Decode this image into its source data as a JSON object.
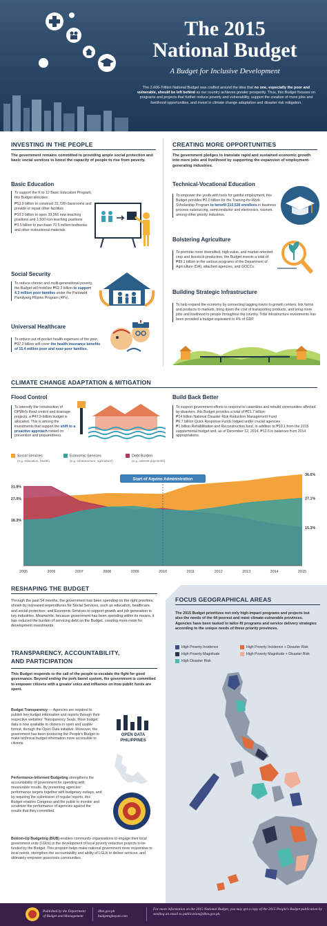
{
  "header": {
    "title_line1": "The 2015",
    "title_line2": "National Budget",
    "subtitle": "A Budget for Inclusive Development",
    "intro_a": "The 2.606-Trillion National Budget was crafted around the idea that ",
    "intro_b": "no one, especially the poor and vulnerable, should be left behind",
    "intro_c": " as our country achieves greater prosperity. Thus, this Budget focuses on programs and projects that further reduce poverty and vulnerability, support the creation of more jobs and livelihood opportunities, and invest in climate change adaptation and disaster risk mitigation."
  },
  "investing": {
    "heading": "INVESTING IN THE PEOPLE",
    "lead": "The government remains committed to providing ample social protection and basic social services to boost the capacity of people to rise from poverty.",
    "basic_ed": {
      "title": "Basic Education",
      "intro": "To support the K to 12 Basic Education Program, this Budget allocates:",
      "b1": "₱53.9 billion to construct 31,728 classrooms and provide or repair other facilities",
      "b2": "₱10.0 billion to open 39,066 new teaching positions and 1,500 non-teaching positions",
      "b3": "₱3.5 billion to purchase 70.5 million textbooks and other instructional materials"
    },
    "social_sec": {
      "title": "Social Security",
      "text_a": "To reduce chronic and multi-generational poverty, the Budget will mobilize ₱62.3 billion ",
      "text_b": "to support 4.3 million poor families",
      "text_c": " under the Pantawid Pamilyang Pilipino Program (4Ps)."
    },
    "healthcare": {
      "title": "Universal Healthcare",
      "text_a": "To reduce out-of-pocket health expenses of the poor, ₱37.2 billion will cover ",
      "text_b": "the health insurance benefits of 15.4 million poor and near-poor families."
    }
  },
  "opportunities": {
    "heading": "CREATING MORE OPPORTUNITIES",
    "lead": "The government pledges to translate rapid and sustained economic growth into more jobs and livelihood by supporting the expansion of employment-generating industries.",
    "tech_voc": {
      "title": "Technical-Vocational Education",
      "text_a": "To empower the youth with tools for gainful employment, this Budget provides ₱2.0 billion for the Training-for-Work Scholarship Program ",
      "text_b": "to benefit 210,526 enrollees",
      "text_c": " in business process outsourcing, semiconductor and electronics, tourism, among other priority industries."
    },
    "agri": {
      "title": "Bolstering Agriculture",
      "text": "To promote more diversified, high-value, and market-oriented crop and livestock production, the Budget invests a total of ₱89.1 billion in the various programs of the Department of Agriculture (DA), attached agencies, and GOCCs."
    },
    "infra": {
      "title": "Building Strategic Infrastructure",
      "text": "To help expand the economy by connecting lagging towns to growth centers, link farms and products to markets, bring down the cost of transporting products, and bring more jobs and livelihood to people throughout the country. Total infrastructure investments has been provided a budget equivalent to 4% of GDP."
    }
  },
  "climate": {
    "heading": "CLIMATE CHANGE ADAPTATION & MITIGATION",
    "flood": {
      "title": "Flood Control",
      "text_a": "To intensify the construction of DPWH's flood control and drainage projects, a ₱47.9-billion budget is allocated. This is among the investments that support the ",
      "text_b": "shift to a proactive approach",
      "text_c": " rooted on prevention and preparedness"
    },
    "bbb": {
      "title": "Build Back Better",
      "intro": "To support government efforts to respond to calamities and rebuild communities affected by disasters, this Budget provides a total of ₱21.7 billion:",
      "b1": "₱14 billion National Disaster Risk Reduction Management Fund",
      "b2": "₱6.7 billion Quick Response Funds lodged under crucial agencies",
      "b3": "₱1 billion Rehabilitation and Reconstruction fund, in addition to ₱10.1 from the 2015 supplemental budget and, as of December 12, 2014, ₱12.6 in balances from 2014 appropriations."
    }
  },
  "chart_data": {
    "type": "area",
    "title": "",
    "annotation": "Start of Aquino Administration",
    "x": [
      2005,
      2006,
      2007,
      2008,
      2009,
      2010,
      2011,
      2012,
      2013,
      2014,
      2015
    ],
    "x_tick_labels": [
      "2005",
      "2006",
      "2007",
      "2008",
      "2009",
      "2010",
      "2011",
      "2012",
      "2013",
      "2014",
      "2015"
    ],
    "ylim": [
      0,
      40
    ],
    "series": [
      {
        "name": "Social Services",
        "sub": "(e.g. education, health)",
        "color": "#f2a33c",
        "values": [
          27.0,
          27.6,
          28.2,
          29.0,
          28.9,
          28.7,
          32.3,
          33.2,
          34.0,
          35.5,
          36.6
        ],
        "start_label": "27.0%",
        "end_label": "36.6%"
      },
      {
        "name": "Economic Services",
        "sub": "(e.g. infrastructure, agriculture)",
        "color": "#3a9f9c",
        "values": [
          18.3,
          18.8,
          21.8,
          23.5,
          23.8,
          22.5,
          22.0,
          23.4,
          25.2,
          26.2,
          27.1
        ],
        "start_label": "18.3%",
        "end_label": "27.1%"
      },
      {
        "name": "Debt Burden",
        "sub": "(e.g. interest payments)",
        "color": "#b23a5a",
        "values": [
          31.8,
          31.8,
          26.0,
          23.6,
          22.4,
          23.0,
          21.6,
          20.6,
          18.8,
          16.6,
          15.3
        ],
        "start_label": "31.8%",
        "end_label": "15.3%"
      }
    ]
  },
  "reshaping": {
    "heading": "RESHAPING THE BUDGET",
    "text": "Through the past 54 months, the government has been spending on the right priorities, shown by increased expenditures for Social Services, such as education, healthcare, and social protection; and Economic Services to support growth and job generation in key industries. Meanwhile, because government has been spending within its means, it has reduced the burden of servicing debt on the Budget, creating more room for development investments."
  },
  "transparency": {
    "heading_1": "TRANSPARENCY, ACCOUNTABILITY,",
    "heading_2": "AND PARTICIPATION",
    "lead": "This Budget responds to the call of the people to escalate the fight for good governance. Beyond ending the pork barrel system, the government is committed to empower citizens with a greater voice and influence on how public funds are spent.",
    "p1_title": "Budget Transparency",
    "p1_text": " — Agencies are required to publish key budget information and reports through their respective websites' Transparency Seals. More budget data is now available to citizens in open and usable format, through the Open Data initiative. Moreover, the government has been producing the People's Budget to make technical budget information more accessible to citizens.",
    "p2_title": "Performance-Informed Budgeting",
    "p2_text": " strengthens the accountability of government for spending with measurable results. By presenting agencies' performance targets together with budgetary outlays, and by requiring the submission of regular reports, this Budget enables Congress and the public to monitor and scrutinize the performance of agencies against the results that they committed.",
    "p3_title": "Bottom-Up Budgeting (BUB)",
    "p3_text": " enables community organizations to engage their local government units (LGUs) in the development of local poverty reduction projects to be funded by the Budget. This program helps make national government more responsive to local needs, strengthen the accountability and ability of LGUs to deliver services, and ultimately empower grassroots communities.",
    "open_data_1": "OPEN DATA",
    "open_data_2": "PHILIPPINES"
  },
  "focus": {
    "heading": "FOCUS GEOGRAPHICAL AREAS",
    "text": "The 2015 Budget prioritizes not only high-impact programs and projects but also the needs of the 44 poorest and most climate-vulnerable provinces. Agencies have been tasked to tailor-fit programs and service delivery strategies according to the unique needs of these priority provinces.",
    "legend": [
      {
        "label": "High Poverty Incidence",
        "color": "#3d4f86"
      },
      {
        "label": "High Poverty Incidence + Disaster Risk",
        "color": "#e06b3b"
      },
      {
        "label": "High Poverty Magnitude",
        "color": "#2e3450"
      },
      {
        "label": "High Poverty Magnitude + Disaster Risk",
        "color": "#f0b09a"
      },
      {
        "label": "High Disaster Risk",
        "color": "#4dbab0"
      }
    ]
  },
  "footer": {
    "pub_1": "Published by the Department",
    "pub_2": "of Budget and Management",
    "site_1": "dbm.gov.ph",
    "site_2": "budgetngbayan.com",
    "info": "For more information on the 2015 National Budget, you may get a copy of the 2015 People's Budget publication by sending an email to publication@dbm.gov.ph."
  }
}
